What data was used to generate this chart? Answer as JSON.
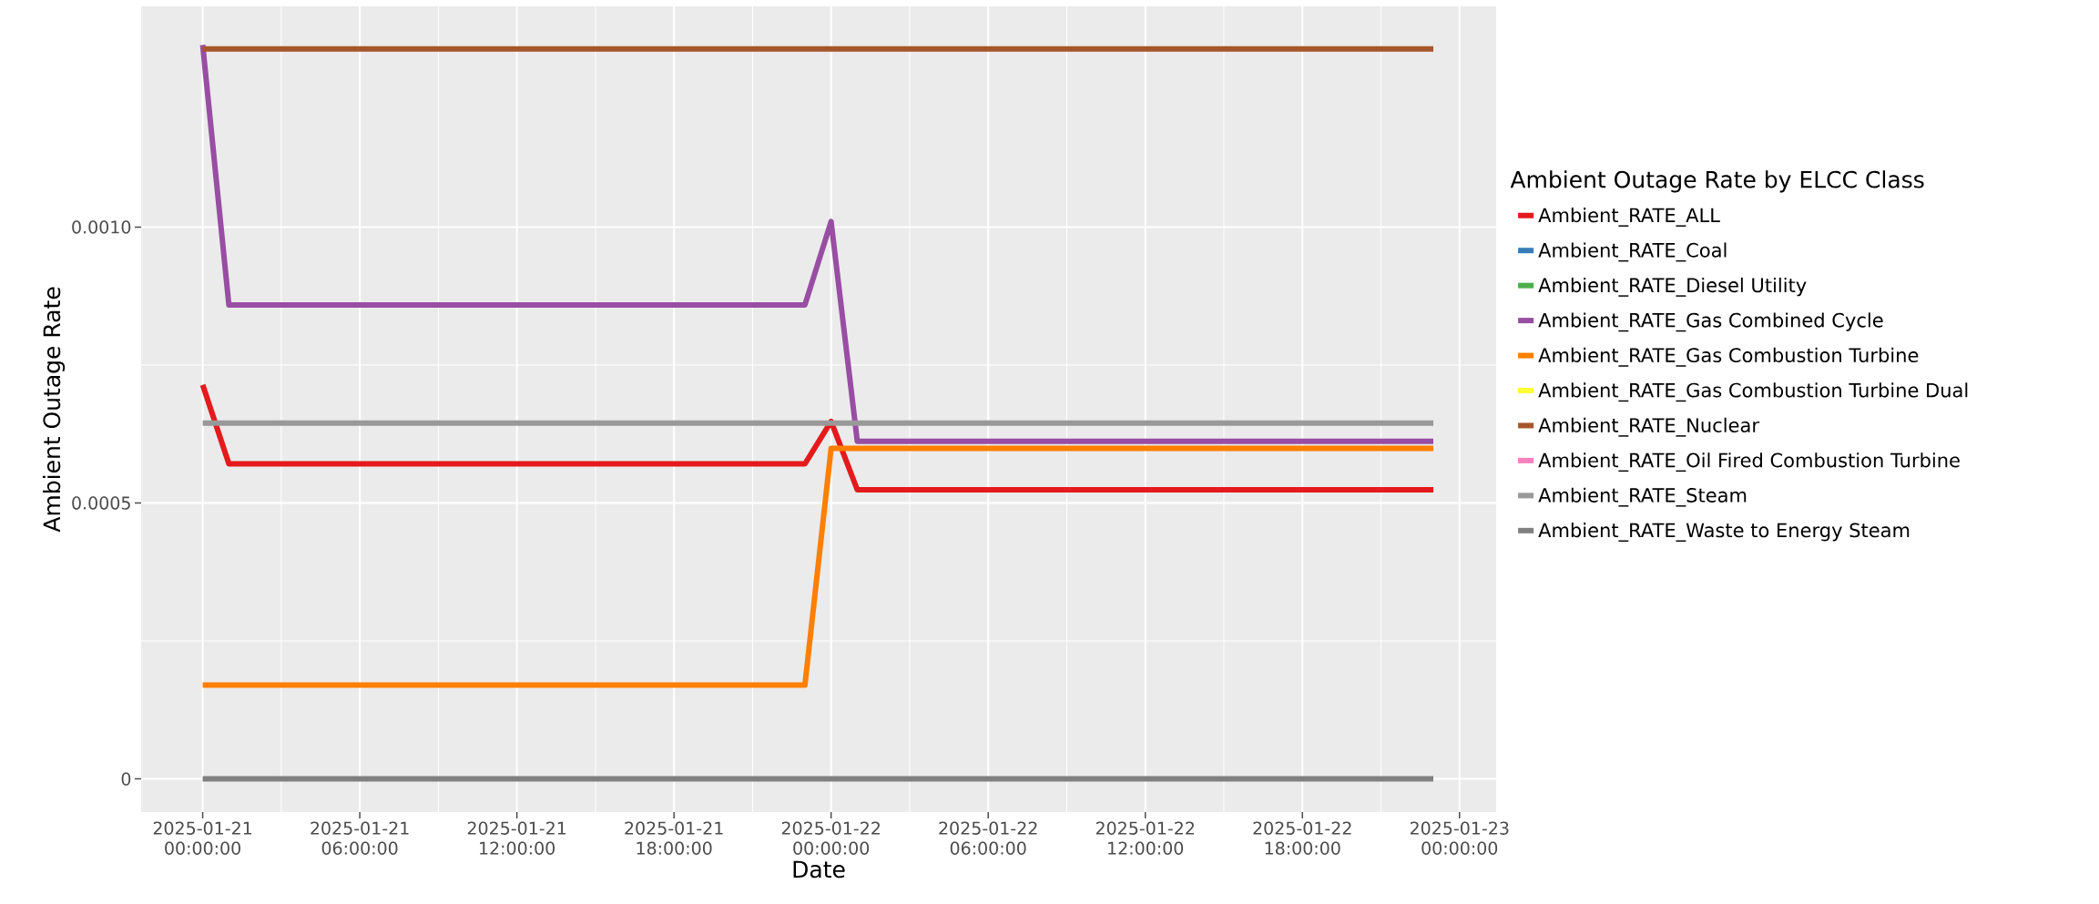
{
  "chart_data": {
    "type": "line",
    "xlabel": "Date",
    "ylabel": "Ambient Outage Rate",
    "legend_title": "Ambient Outage Rate by ELCC Class",
    "legend": "right",
    "grid": true,
    "line_style": "solid",
    "xlim": [
      "2025-01-20T21:39",
      "2025-01-23T01:24"
    ],
    "xticks": [
      {
        "value": "2025-01-21T00:00",
        "label": "2025-01-21 00:00:00"
      },
      {
        "value": "2025-01-21T06:00",
        "label": "2025-01-21 06:00:00"
      },
      {
        "value": "2025-01-21T12:00",
        "label": "2025-01-21 12:00:00"
      },
      {
        "value": "2025-01-21T18:00",
        "label": "2025-01-21 18:00:00"
      },
      {
        "value": "2025-01-22T00:00",
        "label": "2025-01-22 00:00:00"
      },
      {
        "value": "2025-01-22T06:00",
        "label": "2025-01-22 06:00:00"
      },
      {
        "value": "2025-01-22T12:00",
        "label": "2025-01-22 12:00:00"
      },
      {
        "value": "2025-01-22T18:00",
        "label": "2025-01-22 18:00:00"
      },
      {
        "value": "2025-01-23T00:00",
        "label": "2025-01-23 00:00:00"
      }
    ],
    "ylim": [
      -6e-05,
      0.0014
    ],
    "yticks": [
      0,
      {
        "value": 0.0005,
        "label": "0.0005"
      },
      {
        "value": 0.001,
        "label": "0.0010"
      }
    ],
    "series": [
      {
        "name": "Ambient_RATE_ALL",
        "color": "#e41a1c",
        "x": [
          "2025-01-21T00:00",
          "2025-01-21T01:00",
          "2025-01-21T23:00",
          "2025-01-22T00:00",
          "2025-01-22T01:00",
          "2025-01-22T23:00"
        ],
        "values": [
          0.000714,
          0.000571,
          0.000571,
          0.000648,
          0.000524,
          0.000524
        ]
      },
      {
        "name": "Ambient_RATE_Coal",
        "color": "#377eb8",
        "values": [
          null,
          null
        ]
      },
      {
        "name": "Ambient_RATE_Diesel Utility",
        "color": "#4daf4a",
        "values": [
          null,
          null
        ]
      },
      {
        "name": "Ambient_RATE_Gas Combined Cycle",
        "color": "#984ea3",
        "x": [
          "2025-01-21T00:00",
          "2025-01-21T01:00",
          "2025-01-21T23:00",
          "2025-01-22T00:00",
          "2025-01-22T01:00",
          "2025-01-22T23:00"
        ],
        "values": [
          0.00133,
          0.000859,
          0.000859,
          0.00101,
          0.000612,
          0.000612
        ]
      },
      {
        "name": "Ambient_RATE_Gas Combustion Turbine",
        "color": "#ff7f00",
        "x": [
          "2025-01-21T00:00",
          "2025-01-21T23:00",
          "2025-01-22T00:00",
          "2025-01-22T23:00"
        ],
        "values": [
          0.00017,
          0.00017,
          0.000599,
          0.000599
        ]
      },
      {
        "name": "Ambient_RATE_Gas Combustion Turbine Dual",
        "color": "#ffff33",
        "values": [
          null,
          null
        ]
      },
      {
        "name": "Ambient_RATE_Nuclear",
        "color": "#a65628",
        "x": [
          "2025-01-21T00:00",
          "2025-01-22T23:00"
        ],
        "values": [
          0.001323,
          0.001323
        ]
      },
      {
        "name": "Ambient_RATE_Oil Fired Combustion Turbine",
        "color": "#f781bf",
        "values": [
          null,
          null
        ]
      },
      {
        "name": "Ambient_RATE_Steam",
        "color": "#999999",
        "x": [
          "2025-01-21T00:00",
          "2025-01-22T23:00"
        ],
        "values": [
          0.000645,
          0.000645
        ]
      },
      {
        "name": "Ambient_RATE_Waste to Energy Steam",
        "color": "#808080",
        "x": [
          "2025-01-21T00:00",
          "2025-01-22T23:00"
        ],
        "values": [
          0,
          0
        ]
      }
    ]
  }
}
